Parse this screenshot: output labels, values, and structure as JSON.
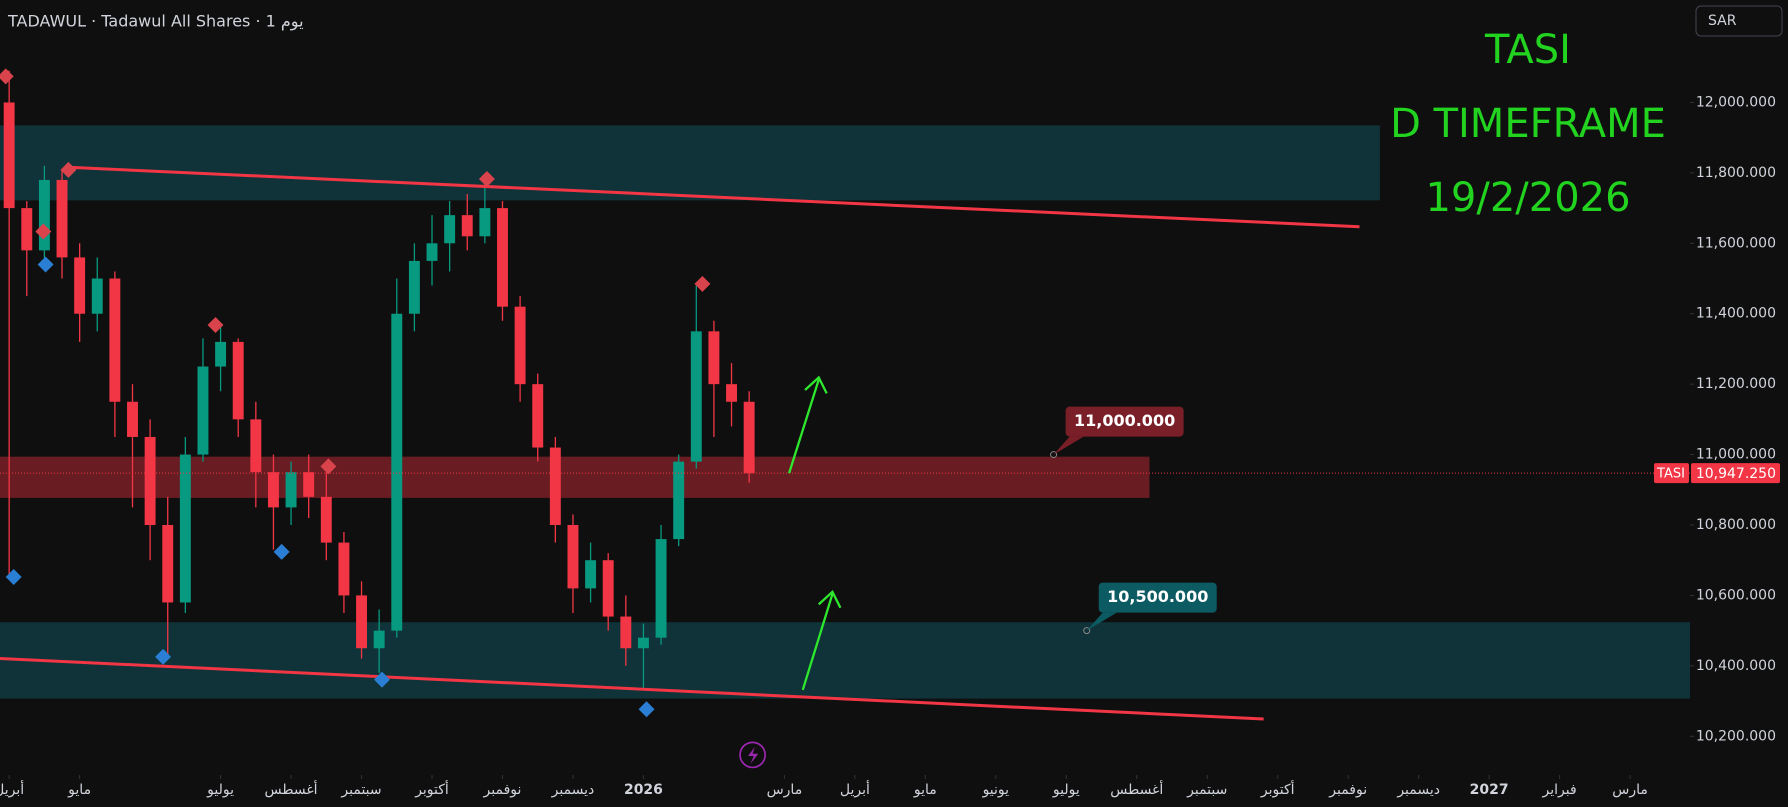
{
  "chart_data": {
    "type": "candlestick",
    "header": "TADAWUL · Tadawul All Shares · 1 يوم",
    "currency": "SAR",
    "title_lines": [
      "TASI",
      "D TIMEFRAME",
      "19/2/2026"
    ],
    "symbol": "TASI",
    "up_color": "#089981",
    "down_color": "#f23645",
    "x": [
      0,
      0.25,
      0.5,
      0.75,
      1,
      1.25,
      1.5,
      1.75,
      2,
      2.25,
      2.5,
      2.75,
      3,
      3.25,
      3.5,
      3.75,
      4,
      4.25,
      4.5,
      4.75,
      5,
      5.25,
      5.5,
      5.75,
      6,
      6.25,
      6.5,
      6.75,
      7,
      7.25,
      7.5,
      7.75,
      8,
      8.25,
      8.5,
      8.75,
      9,
      9.25,
      9.5,
      9.75,
      10,
      10.25,
      10.5
    ],
    "open": [
      12000,
      11700,
      11580,
      11780,
      11560,
      11400,
      11500,
      11150,
      11050,
      10800,
      10580,
      11000,
      11250,
      11320,
      11100,
      10950,
      10850,
      10950,
      10880,
      10750,
      10600,
      10450,
      10500,
      11400,
      11550,
      11600,
      11680,
      11620,
      11700,
      11420,
      11200,
      11020,
      10800,
      10620,
      10700,
      10540,
      10450,
      10480,
      10760,
      10980,
      11350,
      11200,
      11150
    ],
    "high": [
      12090,
      11720,
      11820,
      11810,
      11600,
      11560,
      11520,
      11200,
      11100,
      10880,
      11050,
      11330,
      11370,
      11330,
      11150,
      11000,
      10980,
      11000,
      10970,
      10780,
      10640,
      10560,
      11500,
      11600,
      11680,
      11720,
      11740,
      11780,
      11720,
      11450,
      11230,
      11050,
      10830,
      10750,
      10720,
      10600,
      10520,
      10800,
      11000,
      11480,
      11380,
      11260,
      11180
    ],
    "low": [
      10650,
      11450,
      11540,
      11500,
      11320,
      11350,
      11050,
      10850,
      10700,
      10430,
      10550,
      10980,
      11180,
      11050,
      10850,
      10730,
      10800,
      10820,
      10700,
      10550,
      10420,
      10380,
      10480,
      11350,
      11480,
      11520,
      11580,
      11600,
      11380,
      11150,
      10980,
      10750,
      10550,
      10580,
      10500,
      10400,
      10330,
      10460,
      10740,
      10960,
      11050,
      11080,
      10920
    ],
    "close": [
      11700,
      11580,
      11780,
      11560,
      11400,
      11500,
      11150,
      11050,
      10800,
      10580,
      11000,
      11250,
      11320,
      11100,
      10950,
      10850,
      10950,
      10880,
      10750,
      10600,
      10450,
      10500,
      11400,
      11550,
      11600,
      11680,
      11620,
      11700,
      11420,
      11200,
      11020,
      10800,
      10620,
      10700,
      10540,
      10450,
      10480,
      10760,
      10980,
      11350,
      11200,
      11150,
      10947.25
    ],
    "xlim": [
      -0.13,
      23.85
    ],
    "ylim": [
      10090,
      12291
    ],
    "xticks": [
      {
        "value": 0,
        "label": "أبريل"
      },
      {
        "value": 1,
        "label": "مايو"
      },
      {
        "value": 3,
        "label": "يوليو"
      },
      {
        "value": 4,
        "label": "أغسطس"
      },
      {
        "value": 5,
        "label": "سبتمبر"
      },
      {
        "value": 6,
        "label": "أكتوبر"
      },
      {
        "value": 7,
        "label": "نوفمبر"
      },
      {
        "value": 8,
        "label": "ديسمبر"
      },
      {
        "value": 9,
        "label": "2026"
      },
      {
        "value": 11,
        "label": "مارس"
      },
      {
        "value": 12,
        "label": "أبريل"
      },
      {
        "value": 13,
        "label": "مايو"
      },
      {
        "value": 14,
        "label": "يونيو"
      },
      {
        "value": 15,
        "label": "يوليو"
      },
      {
        "value": 16,
        "label": "أغسطس"
      },
      {
        "value": 17,
        "label": "سبتمبر"
      },
      {
        "value": 18,
        "label": "أكتوبر"
      },
      {
        "value": 19,
        "label": "نوفمبر"
      },
      {
        "value": 20,
        "label": "ديسمبر"
      },
      {
        "value": 21,
        "label": "2027"
      },
      {
        "value": 22,
        "label": "فبراير"
      },
      {
        "value": 23,
        "label": "مارس"
      }
    ],
    "yticks": [
      {
        "value": 10200,
        "label": "10,200.000"
      },
      {
        "value": 10400,
        "label": "10,400.000"
      },
      {
        "value": 10600,
        "label": "10,600.000"
      },
      {
        "value": 10800,
        "label": "10,800.000"
      },
      {
        "value": 11000,
        "label": "11,000.000"
      },
      {
        "value": 11200,
        "label": "11,200.000"
      },
      {
        "value": 11400,
        "label": "11,400.000"
      },
      {
        "value": 11600,
        "label": "11,600.000"
      },
      {
        "value": 11800,
        "label": "11,800.000"
      },
      {
        "value": 12000,
        "label": "12,000.000"
      }
    ],
    "zones": [
      {
        "from": 11722,
        "to": 11935,
        "x": [
          -0.13,
          19.45
        ],
        "color": "#0f3a40"
      },
      {
        "from": 10877,
        "to": 10994,
        "x": [
          -0.13,
          16.18
        ],
        "color": "#7a1f27"
      },
      {
        "from": 10307,
        "to": 10524,
        "x": [
          -0.13,
          23.85
        ],
        "color": "#0f3a40"
      }
    ],
    "trendlines": [
      {
        "x": [
          0.84,
          19.16
        ],
        "y": [
          11816,
          11647
        ],
        "color": "#f23645"
      },
      {
        "x": [
          -0.13,
          17.8
        ],
        "y": [
          10421,
          10249
        ],
        "color": "#f23645"
      }
    ],
    "price_notes": [
      {
        "x": 14.82,
        "value": 11000,
        "label": "11,000.000",
        "color": "#7a1f27"
      },
      {
        "x": 15.29,
        "value": 10500,
        "label": "10,500.000",
        "color": "#0c5a62"
      }
    ],
    "last_price": {
      "value": 10947.25,
      "label": "10,947.250"
    }
  }
}
